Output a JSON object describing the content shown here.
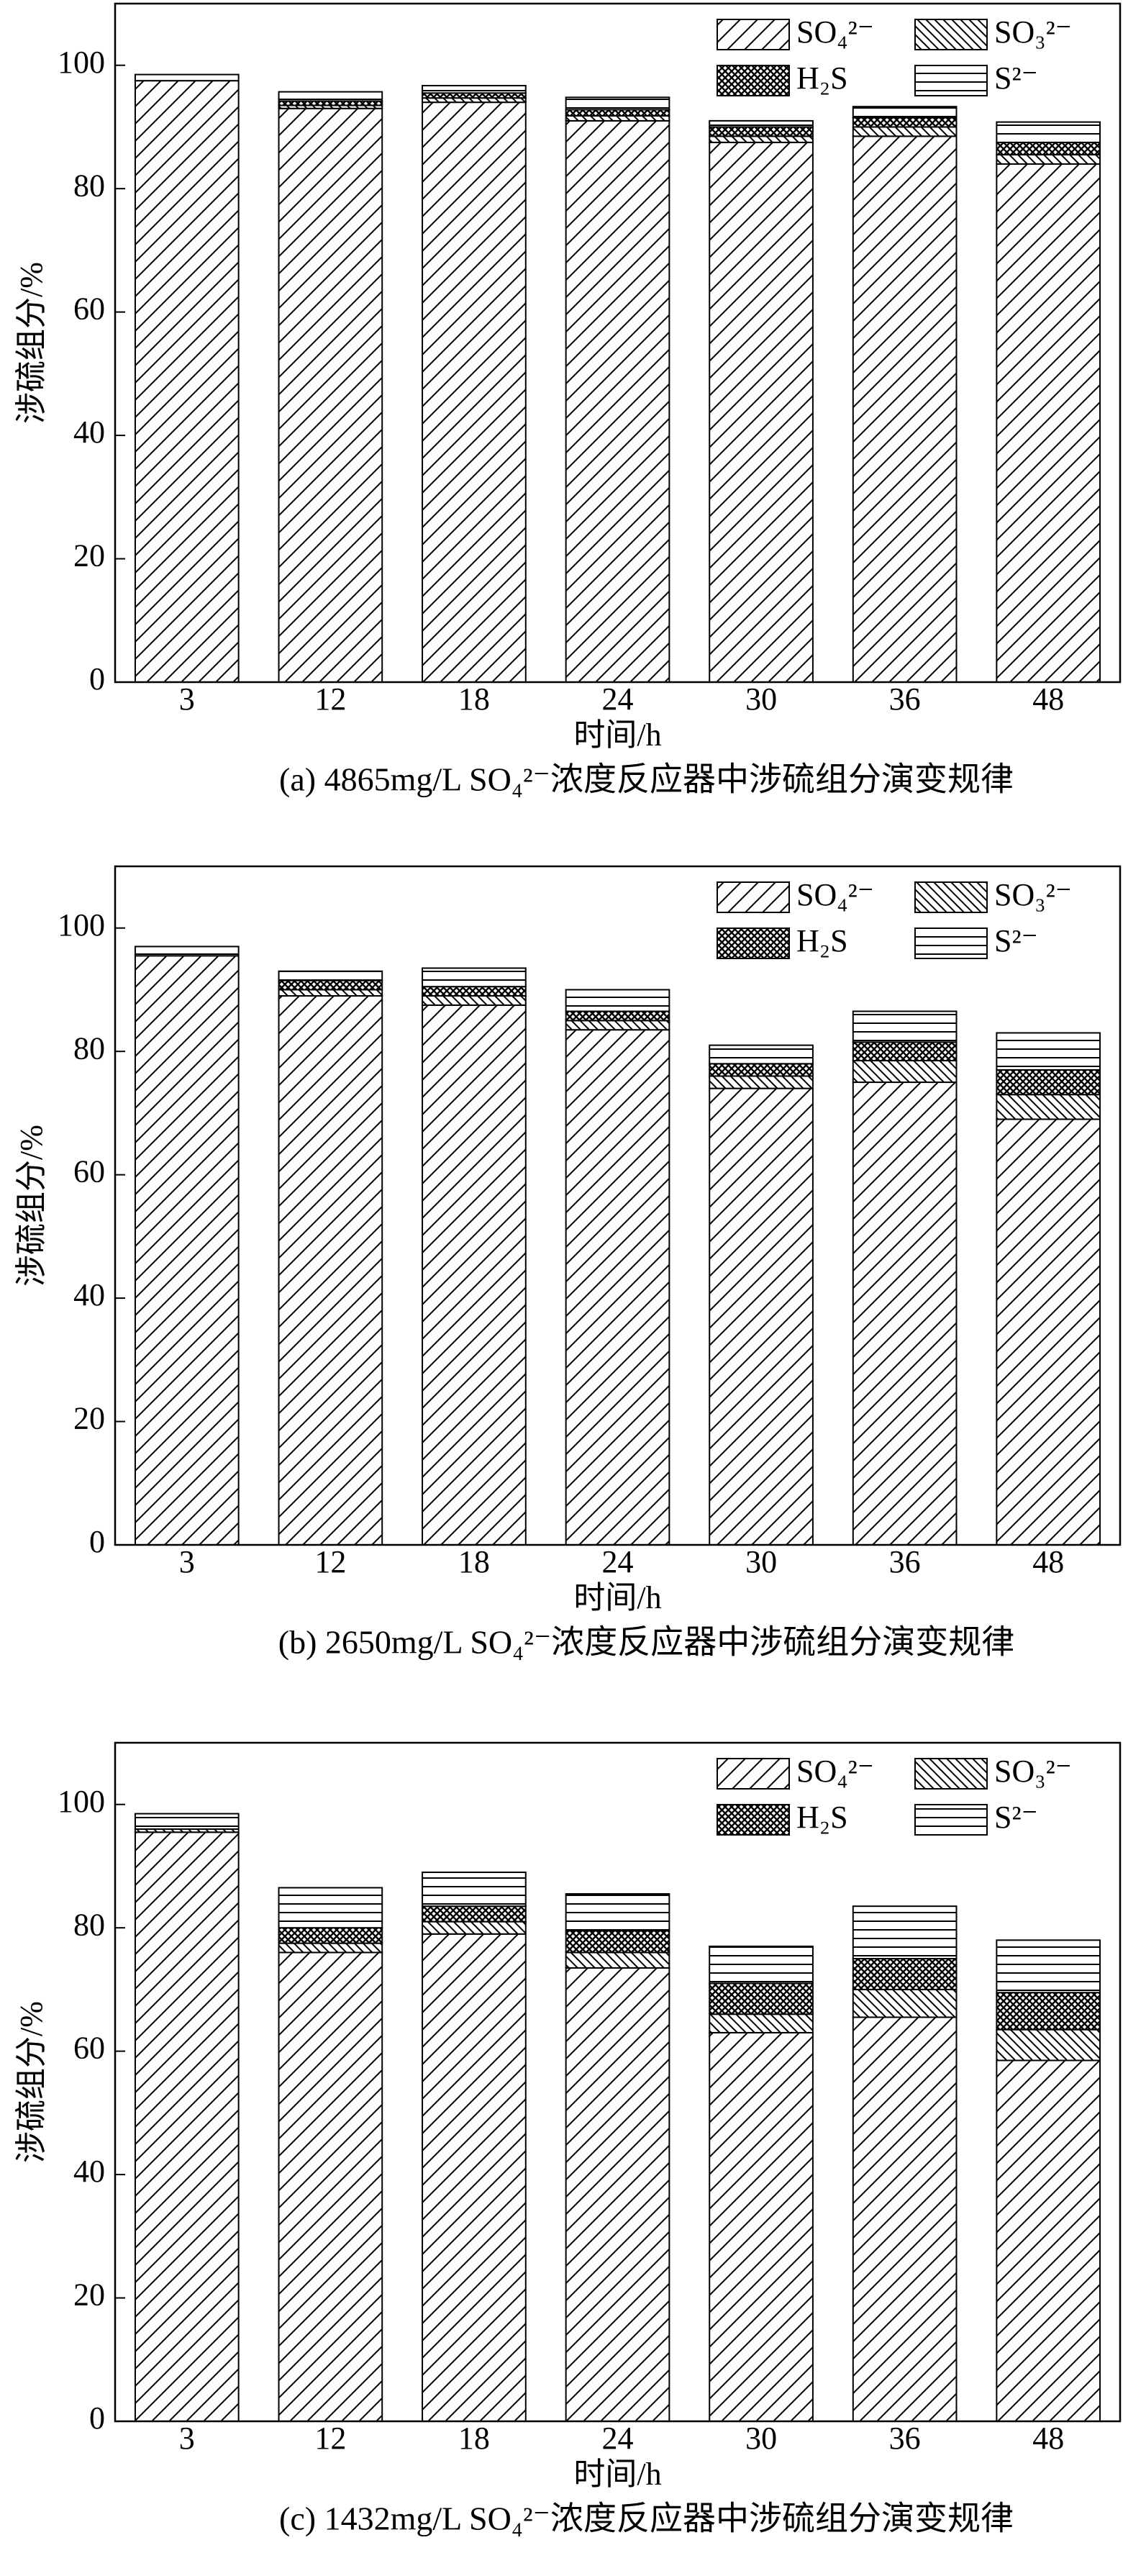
{
  "chart_data": [
    {
      "type": "stacked-bar",
      "caption": "(a) 4865mg/L SO₄²⁻浓度反应器中涉硫组分演变规律",
      "xlabel": "时间/h",
      "ylabel": "涉硫组分/%",
      "categories": [
        "3",
        "12",
        "18",
        "24",
        "30",
        "36",
        "48"
      ],
      "series": [
        {
          "name": "SO₄²⁻",
          "pattern": "diag-right",
          "values": [
            97.5,
            93,
            94,
            91,
            87.5,
            88.5,
            84
          ]
        },
        {
          "name": "SO₃²⁻",
          "pattern": "diag-left",
          "values": [
            0,
            0.5,
            0.7,
            0.8,
            1,
            1.5,
            1.5
          ]
        },
        {
          "name": "H₂S",
          "pattern": "cross",
          "values": [
            0,
            0.7,
            0.8,
            1,
            1.5,
            1.5,
            2
          ]
        },
        {
          "name": "S²⁻",
          "pattern": "hlines",
          "values": [
            1,
            1.5,
            1.2,
            2,
            1,
            1.8,
            3.3
          ]
        }
      ],
      "ylim": [
        0,
        110
      ],
      "yticks": [
        0,
        20,
        40,
        60,
        80,
        100
      ],
      "legend": "upper right"
    },
    {
      "type": "stacked-bar",
      "caption": "(b) 2650mg/L SO₄²⁻浓度反应器中涉硫组分演变规律",
      "xlabel": "时间/h",
      "ylabel": "涉硫组分/%",
      "categories": [
        "3",
        "12",
        "18",
        "24",
        "30",
        "36",
        "48"
      ],
      "series": [
        {
          "name": "SO₄²⁻",
          "pattern": "diag-right",
          "values": [
            95.5,
            89,
            87.5,
            83.5,
            74,
            75,
            69
          ]
        },
        {
          "name": "SO₃²⁻",
          "pattern": "diag-left",
          "values": [
            0,
            1,
            1.5,
            1.5,
            2,
            3.5,
            4
          ]
        },
        {
          "name": "H₂S",
          "pattern": "cross",
          "values": [
            0,
            1.5,
            1.5,
            1.5,
            2,
            3,
            4
          ]
        },
        {
          "name": "S²⁻",
          "pattern": "hlines",
          "values": [
            1.5,
            1.5,
            3,
            3.5,
            3,
            5,
            6
          ]
        }
      ],
      "ylim": [
        0,
        110
      ],
      "yticks": [
        0,
        20,
        40,
        60,
        80,
        100
      ],
      "legend": "upper right"
    },
    {
      "type": "stacked-bar",
      "caption": "(c) 1432mg/L SO₄²⁻浓度反应器中涉硫组分演变规律",
      "xlabel": "时间/h",
      "ylabel": "涉硫组分/%",
      "categories": [
        "3",
        "12",
        "18",
        "24",
        "30",
        "36",
        "48"
      ],
      "series": [
        {
          "name": "SO₄²⁻",
          "pattern": "diag-right",
          "values": [
            95.5,
            76,
            79,
            73.5,
            63,
            65.5,
            58.5
          ]
        },
        {
          "name": "SO₃²⁻",
          "pattern": "diag-left",
          "values": [
            0.5,
            1.5,
            2,
            2.5,
            3,
            4.5,
            5
          ]
        },
        {
          "name": "H₂S",
          "pattern": "cross",
          "values": [
            0,
            2.5,
            2.5,
            3.5,
            5,
            5,
            6
          ]
        },
        {
          "name": "S²⁻",
          "pattern": "hlines",
          "values": [
            2.5,
            6.5,
            5.5,
            6,
            6,
            8.5,
            8.5
          ]
        }
      ],
      "ylim": [
        0,
        110
      ],
      "yticks": [
        0,
        20,
        40,
        60,
        80,
        100
      ],
      "legend": "upper right"
    }
  ]
}
